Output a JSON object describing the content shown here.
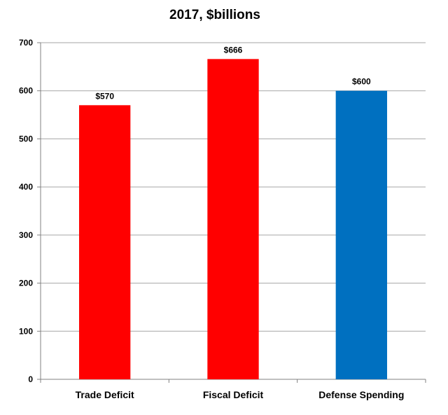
{
  "chart_data": {
    "type": "bar",
    "title": "2017, $billions",
    "categories": [
      "Trade Deficit",
      "Fiscal Deficit",
      "Defense Spending"
    ],
    "values": [
      570,
      666,
      600
    ],
    "data_labels": [
      "$570",
      "$666",
      "$600"
    ],
    "colors": [
      "#ff0000",
      "#ff0000",
      "#0070c0"
    ],
    "xlabel": "",
    "ylabel": "",
    "ylim": [
      0,
      700
    ],
    "yticks": [
      0,
      100,
      200,
      300,
      400,
      500,
      600,
      700
    ],
    "ytick_labels": [
      "0",
      "100",
      "200",
      "300",
      "400",
      "500",
      "600",
      "700"
    ],
    "grid": true,
    "legend": "none"
  }
}
